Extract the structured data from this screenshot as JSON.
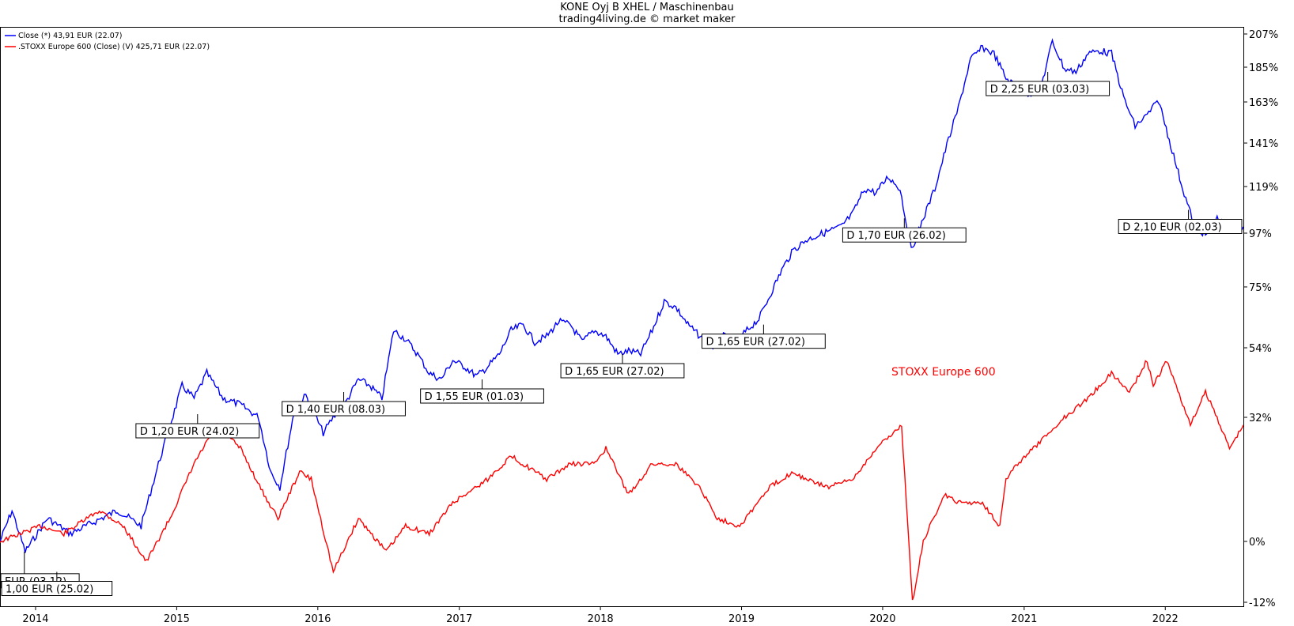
{
  "chart_data": {
    "type": "line",
    "title": "KONE Oyj B XHEL / Maschinenbau",
    "subtitle": "trading4living.de © market maker",
    "legend_placement": "top-left",
    "legend": [
      {
        "label": "Close (*) 43,91 EUR (22.07)",
        "color": "#0000ff"
      },
      {
        "label": ".STOXX Europe 600 (Close) (V) 425,71 EUR (22.07)",
        "color": "#ff0000"
      }
    ],
    "series_label_text": "STOXX Europe 600",
    "colors": {
      "kone": "#0000ff",
      "stoxx": "#ff0000"
    },
    "x_axis": {
      "type": "time",
      "range": [
        "2013-10-01",
        "2022-07-22"
      ],
      "ticks": [
        "2014",
        "2015",
        "2016",
        "2017",
        "2018",
        "2019",
        "2020",
        "2021",
        "2022"
      ]
    },
    "y_axis": {
      "position": "right",
      "unit": "%",
      "range": [
        -14,
        210
      ],
      "ticks": [
        -12,
        0,
        32,
        54,
        75,
        97,
        119,
        141,
        163,
        185,
        207
      ],
      "tick_labels": [
        "-12%",
        "0%",
        "32%",
        "54%",
        "75%",
        "97%",
        "119%",
        "141%",
        "163%",
        "185%",
        "207%"
      ]
    },
    "grid": false,
    "series": [
      {
        "id": "kone",
        "points": [
          [
            "2013-10-01",
            0
          ],
          [
            "2013-11-01",
            8
          ],
          [
            "2013-12-05",
            -2
          ],
          [
            "2014-02-01",
            6
          ],
          [
            "2014-04-01",
            2
          ],
          [
            "2014-06-01",
            5
          ],
          [
            "2014-08-01",
            8
          ],
          [
            "2014-10-01",
            4
          ],
          [
            "2014-11-15",
            20
          ],
          [
            "2014-12-15",
            30
          ],
          [
            "2015-01-15",
            42
          ],
          [
            "2015-02-15",
            38
          ],
          [
            "2015-03-20",
            46
          ],
          [
            "2015-05-01",
            38
          ],
          [
            "2015-06-15",
            36
          ],
          [
            "2015-08-01",
            32
          ],
          [
            "2015-09-01",
            18
          ],
          [
            "2015-09-25",
            14
          ],
          [
            "2015-11-01",
            34
          ],
          [
            "2015-12-01",
            39
          ],
          [
            "2016-01-15",
            28
          ],
          [
            "2016-02-10",
            32
          ],
          [
            "2016-03-10",
            36
          ],
          [
            "2016-04-15",
            44
          ],
          [
            "2016-05-15",
            42
          ],
          [
            "2016-06-15",
            38
          ],
          [
            "2016-07-15",
            60
          ],
          [
            "2016-08-15",
            57
          ],
          [
            "2016-09-15",
            52
          ],
          [
            "2016-10-15",
            46
          ],
          [
            "2016-11-15",
            44
          ],
          [
            "2016-12-15",
            50
          ],
          [
            "2017-01-15",
            48
          ],
          [
            "2017-02-15",
            45
          ],
          [
            "2017-03-15",
            48
          ],
          [
            "2017-04-15",
            52
          ],
          [
            "2017-05-15",
            60
          ],
          [
            "2017-06-15",
            62
          ],
          [
            "2017-07-15",
            56
          ],
          [
            "2017-08-15",
            58
          ],
          [
            "2017-09-15",
            63
          ],
          [
            "2017-10-15",
            62
          ],
          [
            "2017-11-15",
            56
          ],
          [
            "2017-12-15",
            60
          ],
          [
            "2018-01-15",
            58
          ],
          [
            "2018-02-15",
            52
          ],
          [
            "2018-03-15",
            53
          ],
          [
            "2018-04-15",
            52
          ],
          [
            "2018-05-15",
            60
          ],
          [
            "2018-06-15",
            70
          ],
          [
            "2018-07-15",
            68
          ],
          [
            "2018-08-15",
            62
          ],
          [
            "2018-09-15",
            58
          ],
          [
            "2018-10-15",
            54
          ],
          [
            "2018-11-15",
            58
          ],
          [
            "2018-12-15",
            56
          ],
          [
            "2019-01-15",
            60
          ],
          [
            "2019-02-15",
            64
          ],
          [
            "2019-03-15",
            72
          ],
          [
            "2019-04-15",
            82
          ],
          [
            "2019-05-15",
            90
          ],
          [
            "2019-06-15",
            94
          ],
          [
            "2019-07-15",
            96
          ],
          [
            "2019-08-15",
            98
          ],
          [
            "2019-09-15",
            100
          ],
          [
            "2019-10-15",
            106
          ],
          [
            "2019-11-15",
            118
          ],
          [
            "2019-12-15",
            116
          ],
          [
            "2020-01-15",
            124
          ],
          [
            "2020-02-15",
            118
          ],
          [
            "2020-03-15",
            90
          ],
          [
            "2020-04-15",
            104
          ],
          [
            "2020-05-15",
            118
          ],
          [
            "2020-06-15",
            140
          ],
          [
            "2020-07-15",
            160
          ],
          [
            "2020-08-15",
            190
          ],
          [
            "2020-09-15",
            198
          ],
          [
            "2020-10-15",
            194
          ],
          [
            "2020-11-15",
            178
          ],
          [
            "2020-12-15",
            172
          ],
          [
            "2021-01-15",
            168
          ],
          [
            "2021-02-15",
            174
          ],
          [
            "2021-03-15",
            202
          ],
          [
            "2021-04-15",
            184
          ],
          [
            "2021-05-15",
            182
          ],
          [
            "2021-06-15",
            194
          ],
          [
            "2021-07-15",
            196
          ],
          [
            "2021-08-15",
            194
          ],
          [
            "2021-09-15",
            166
          ],
          [
            "2021-10-15",
            150
          ],
          [
            "2021-11-15",
            156
          ],
          [
            "2021-12-15",
            164
          ],
          [
            "2022-01-15",
            140
          ],
          [
            "2022-02-15",
            118
          ],
          [
            "2022-03-15",
            102
          ],
          [
            "2022-04-15",
            96
          ],
          [
            "2022-05-15",
            104
          ],
          [
            "2022-06-15",
            98
          ],
          [
            "2022-07-22",
            100
          ]
        ]
      },
      {
        "id": "stoxx",
        "points": [
          [
            "2013-10-01",
            0
          ],
          [
            "2014-01-15",
            4
          ],
          [
            "2014-03-15",
            2
          ],
          [
            "2014-06-15",
            8
          ],
          [
            "2014-08-15",
            4
          ],
          [
            "2014-10-15",
            -4
          ],
          [
            "2014-12-15",
            6
          ],
          [
            "2015-02-15",
            20
          ],
          [
            "2015-04-15",
            30
          ],
          [
            "2015-06-15",
            24
          ],
          [
            "2015-08-15",
            12
          ],
          [
            "2015-09-20",
            6
          ],
          [
            "2015-11-15",
            18
          ],
          [
            "2015-12-15",
            16
          ],
          [
            "2016-02-10",
            -6
          ],
          [
            "2016-04-15",
            6
          ],
          [
            "2016-06-26",
            -2
          ],
          [
            "2016-08-15",
            4
          ],
          [
            "2016-10-15",
            2
          ],
          [
            "2016-12-15",
            10
          ],
          [
            "2017-03-15",
            16
          ],
          [
            "2017-05-15",
            22
          ],
          [
            "2017-08-15",
            16
          ],
          [
            "2017-10-15",
            20
          ],
          [
            "2017-12-15",
            20
          ],
          [
            "2018-01-15",
            24
          ],
          [
            "2018-03-15",
            12
          ],
          [
            "2018-05-15",
            20
          ],
          [
            "2018-07-15",
            20
          ],
          [
            "2018-09-15",
            14
          ],
          [
            "2018-10-30",
            6
          ],
          [
            "2018-12-27",
            4
          ],
          [
            "2019-03-15",
            14
          ],
          [
            "2019-05-15",
            18
          ],
          [
            "2019-06-15",
            16
          ],
          [
            "2019-08-15",
            14
          ],
          [
            "2019-10-15",
            16
          ],
          [
            "2019-12-15",
            24
          ],
          [
            "2020-02-19",
            30
          ],
          [
            "2020-03-18",
            -12
          ],
          [
            "2020-04-15",
            0
          ],
          [
            "2020-06-08",
            12
          ],
          [
            "2020-07-15",
            10
          ],
          [
            "2020-09-15",
            10
          ],
          [
            "2020-10-30",
            4
          ],
          [
            "2020-11-15",
            16
          ],
          [
            "2020-12-15",
            20
          ],
          [
            "2021-02-15",
            26
          ],
          [
            "2021-04-15",
            32
          ],
          [
            "2021-06-15",
            38
          ],
          [
            "2021-08-15",
            46
          ],
          [
            "2021-09-30",
            40
          ],
          [
            "2021-11-15",
            50
          ],
          [
            "2021-12-01",
            42
          ],
          [
            "2022-01-05",
            50
          ],
          [
            "2022-03-07",
            30
          ],
          [
            "2022-04-15",
            40
          ],
          [
            "2022-05-15",
            32
          ],
          [
            "2022-06-16",
            24
          ],
          [
            "2022-07-22",
            30
          ]
        ]
      }
    ],
    "annotations": [
      {
        "label": "EUR (03.12)",
        "anchor": [
          "2013-12-03",
          -2
        ]
      },
      {
        "label": "1,00 EUR (25.02)",
        "anchor": [
          "2014-02-25",
          -6
        ]
      },
      {
        "label": "D 1,20 EUR (24.02)",
        "anchor": [
          "2015-02-24",
          33
        ]
      },
      {
        "label": "D 1,40 EUR (08.03)",
        "anchor": [
          "2016-03-08",
          40
        ]
      },
      {
        "label": "D 1,55 EUR (01.03)",
        "anchor": [
          "2017-03-01",
          44
        ]
      },
      {
        "label": "D 1,65 EUR (27.02)",
        "anchor": [
          "2018-02-27",
          52
        ]
      },
      {
        "label": "D 1,65 EUR (27.02)",
        "anchor": [
          "2019-02-27",
          62
        ]
      },
      {
        "label": "D 1,70 EUR (26.02)",
        "anchor": [
          "2020-02-26",
          104
        ]
      },
      {
        "label": "D 2,25 EUR (03.03)",
        "anchor": [
          "2021-03-03",
          182
        ]
      },
      {
        "label": "D 2,10 EUR (02.03)",
        "anchor": [
          "2022-03-02",
          108
        ]
      }
    ]
  }
}
